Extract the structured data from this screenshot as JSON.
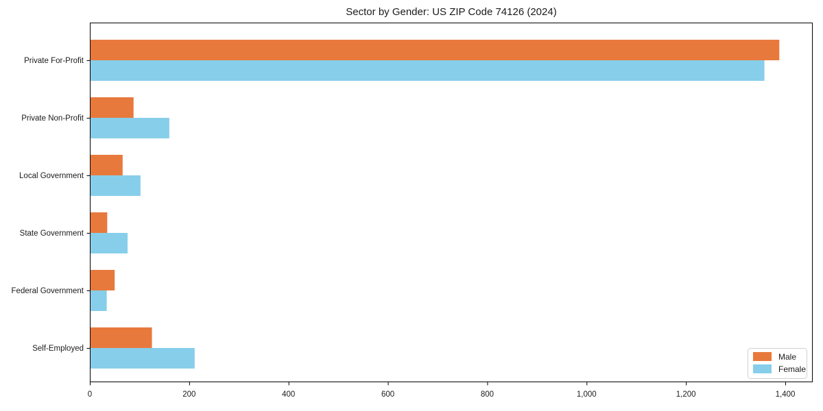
{
  "chart_data": {
    "type": "bar",
    "orientation": "horizontal",
    "title": "Sector by Gender: US ZIP Code 74126 (2024)",
    "categories": [
      "Private For-Profit",
      "Private Non-Profit",
      "Local Government",
      "State Government",
      "Federal Government",
      "Self-Employed"
    ],
    "series": [
      {
        "name": "Male",
        "color": "#E8793C",
        "values": [
          1388,
          88,
          66,
          35,
          50,
          125
        ]
      },
      {
        "name": "Female",
        "color": "#87CEEA",
        "values": [
          1358,
          160,
          102,
          76,
          34,
          211
        ]
      }
    ],
    "xlabel": "",
    "ylabel": "",
    "xlim": [
      0,
      1400
    ],
    "xticks": {
      "values": [
        0,
        200,
        400,
        600,
        800,
        1000,
        1200,
        1400
      ],
      "labels": [
        "0",
        "200",
        "400",
        "600",
        "800",
        "1,000",
        "1,200",
        "1,400"
      ]
    },
    "legend": {
      "position": "lower right",
      "entries": [
        "Male",
        "Female"
      ]
    },
    "grid": false,
    "text_color": "#1a1a1a",
    "spine_color": "#000000",
    "legend_border_color": "#d0d0d0"
  }
}
